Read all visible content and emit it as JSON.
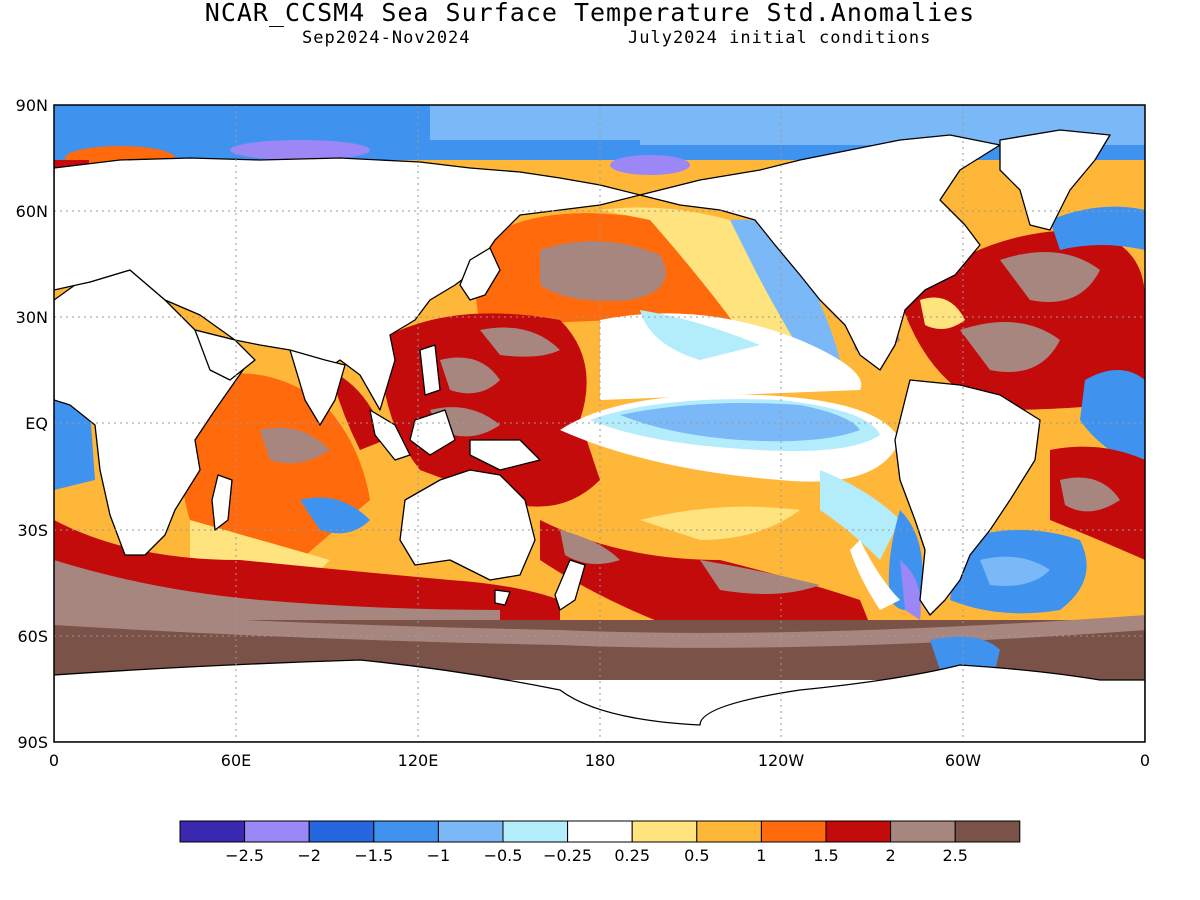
{
  "title": "NCAR_CCSM4 Sea Surface Temperature Std.Anomalies",
  "period": "Sep2024-Nov2024",
  "init": "July2024 initial conditions",
  "axes": {
    "lat_ticks": [
      "90N",
      "60N",
      "30N",
      "EQ",
      "30S",
      "60S",
      "90S"
    ],
    "lon_ticks": [
      "0",
      "60E",
      "120E",
      "180",
      "120W",
      "60W",
      "0"
    ]
  },
  "colorbar": {
    "colors": [
      "#3b28b0",
      "#9b87f5",
      "#2667e0",
      "#3f93ef",
      "#7ab8f7",
      "#b3ecfb",
      "#ffffff",
      "#ffe37f",
      "#ffb73a",
      "#ff6a0c",
      "#c30b0b",
      "#a88680",
      "#7a5248"
    ],
    "labels": [
      "-2.5",
      "-2",
      "-1.5",
      "-1",
      "-0.5",
      "-0.25",
      "0.25",
      "0.5",
      "1",
      "1.5",
      "2",
      "2.5"
    ]
  },
  "colors": {
    "land": "#ffffff",
    "coastline": "#000000",
    "grid": "#9a9a9a"
  }
}
